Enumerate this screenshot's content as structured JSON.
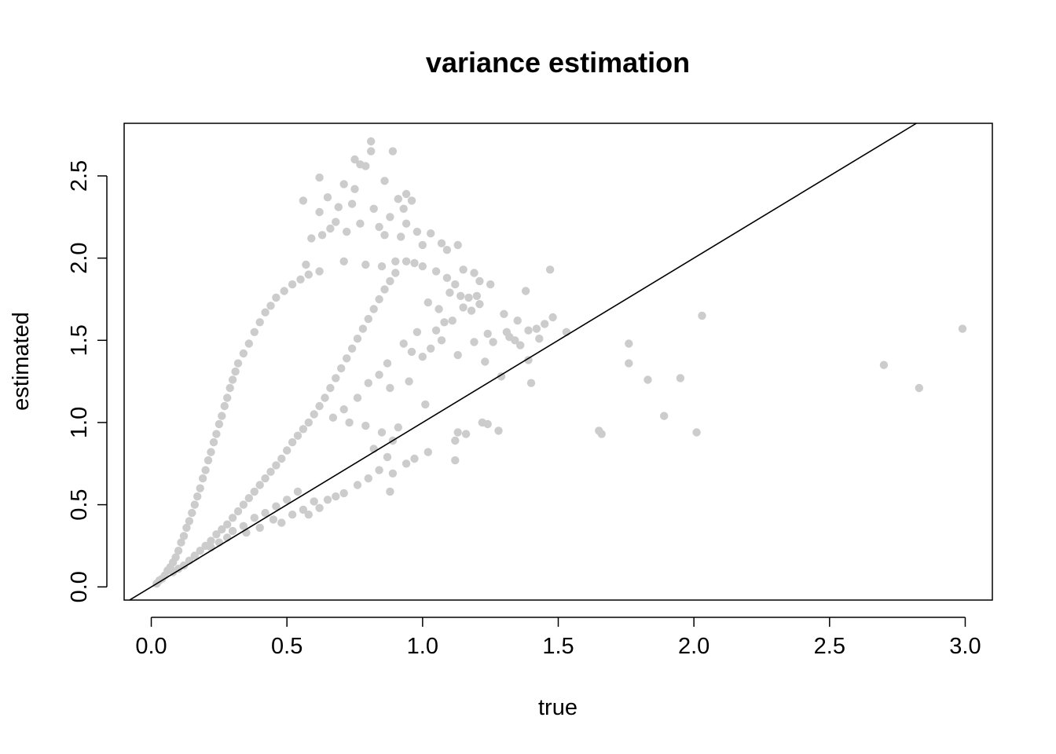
{
  "chart_data": {
    "type": "scatter",
    "title": "variance estimation",
    "xlabel": "true",
    "ylabel": "estimated",
    "xlim": [
      -0.1,
      3.1
    ],
    "ylim": [
      -0.08,
      2.82
    ],
    "xticks": [
      0.0,
      0.5,
      1.0,
      1.5,
      2.0,
      2.5,
      3.0
    ],
    "xtick_labels": [
      "0.0",
      "0.5",
      "1.0",
      "1.5",
      "2.0",
      "2.5",
      "3.0"
    ],
    "yticks": [
      0.0,
      0.5,
      1.0,
      1.5,
      2.0,
      2.5
    ],
    "ytick_labels": [
      "0.0",
      "0.5",
      "1.0",
      "1.5",
      "2.0",
      "2.5"
    ],
    "point_color": "#cccccc",
    "line_color": "#000000",
    "reference_line": {
      "intercept": 0,
      "slope": 1
    },
    "grid": false,
    "legend": "none",
    "series": [
      {
        "points": [
          [
            0.81,
            2.71
          ],
          [
            0.81,
            2.65
          ],
          [
            0.89,
            2.65
          ],
          [
            0.75,
            2.6
          ],
          [
            0.77,
            2.57
          ],
          [
            0.79,
            2.56
          ],
          [
            0.62,
            2.49
          ],
          [
            0.86,
            2.47
          ],
          [
            0.71,
            2.45
          ],
          [
            0.75,
            2.42
          ],
          [
            0.65,
            2.37
          ],
          [
            0.74,
            2.33
          ],
          [
            0.69,
            2.31
          ],
          [
            0.56,
            2.35
          ],
          [
            0.62,
            2.28
          ],
          [
            0.82,
            2.3
          ],
          [
            0.91,
            2.36
          ],
          [
            0.94,
            2.39
          ],
          [
            0.93,
            2.3
          ],
          [
            0.88,
            2.25
          ],
          [
            0.96,
            2.35
          ],
          [
            0.68,
            2.22
          ],
          [
            0.66,
            2.18
          ],
          [
            0.63,
            2.14
          ],
          [
            0.77,
            2.21
          ],
          [
            0.84,
            2.19
          ],
          [
            0.72,
            2.16
          ],
          [
            0.86,
            2.14
          ],
          [
            0.94,
            2.21
          ],
          [
            0.59,
            2.12
          ],
          [
            0.98,
            2.16
          ],
          [
            0.92,
            2.13
          ],
          [
            1.03,
            2.15
          ],
          [
            1.07,
            2.09
          ],
          [
            1.0,
            2.08
          ],
          [
            1.09,
            2.05
          ],
          [
            1.13,
            2.08
          ],
          [
            0.57,
            1.96
          ],
          [
            0.62,
            1.92
          ],
          [
            0.71,
            1.98
          ],
          [
            0.79,
            1.96
          ],
          [
            0.85,
            1.95
          ],
          [
            0.9,
            1.98
          ],
          [
            0.94,
            1.98
          ],
          [
            0.97,
            1.97
          ],
          [
            1.0,
            1.95
          ],
          [
            1.05,
            1.92
          ],
          [
            1.09,
            1.88
          ],
          [
            1.15,
            1.93
          ],
          [
            1.19,
            1.91
          ],
          [
            1.21,
            1.86
          ],
          [
            1.25,
            1.84
          ],
          [
            1.12,
            1.84
          ],
          [
            1.1,
            1.79
          ],
          [
            1.14,
            1.77
          ],
          [
            1.17,
            1.76
          ],
          [
            1.2,
            1.77
          ],
          [
            1.02,
            1.73
          ],
          [
            1.06,
            1.69
          ],
          [
            1.15,
            1.7
          ],
          [
            1.18,
            1.68
          ],
          [
            1.21,
            1.72
          ],
          [
            1.47,
            1.93
          ],
          [
            1.38,
            1.8
          ],
          [
            1.3,
            1.66
          ],
          [
            1.35,
            1.62
          ],
          [
            1.45,
            1.6
          ],
          [
            1.48,
            1.64
          ],
          [
            1.42,
            1.57
          ],
          [
            1.39,
            1.56
          ],
          [
            1.53,
            1.55
          ],
          [
            1.32,
            1.52
          ],
          [
            1.43,
            1.51
          ],
          [
            1.34,
            1.5
          ],
          [
            1.36,
            1.47
          ],
          [
            1.26,
            1.49
          ],
          [
            1.31,
            1.55
          ],
          [
            1.24,
            1.54
          ],
          [
            1.39,
            1.38
          ],
          [
            1.29,
            1.28
          ],
          [
            1.4,
            1.24
          ],
          [
            1.23,
            1.37
          ],
          [
            1.19,
            1.49
          ],
          [
            1.13,
            1.41
          ],
          [
            1.05,
            1.56
          ],
          [
            1.08,
            1.61
          ],
          [
            1.11,
            1.62
          ],
          [
            1.07,
            1.5
          ],
          [
            1.03,
            1.45
          ],
          [
            1.0,
            1.4
          ],
          [
            0.96,
            1.43
          ],
          [
            0.93,
            1.48
          ],
          [
            0.98,
            1.55
          ],
          [
            0.87,
            1.36
          ],
          [
            0.84,
            1.29
          ],
          [
            0.8,
            1.24
          ],
          [
            0.88,
            1.21
          ],
          [
            0.95,
            1.25
          ],
          [
            1.01,
            1.11
          ],
          [
            0.76,
            1.15
          ],
          [
            0.71,
            1.08
          ],
          [
            0.67,
            1.03
          ],
          [
            0.73,
            1.0
          ],
          [
            0.79,
            0.98
          ],
          [
            0.85,
            0.94
          ],
          [
            0.89,
            0.89
          ],
          [
            0.91,
            0.97
          ],
          [
            0.82,
            0.84
          ],
          [
            0.87,
            0.79
          ],
          [
            0.84,
            0.71
          ],
          [
            0.89,
            0.69
          ],
          [
            0.94,
            0.75
          ],
          [
            0.97,
            0.78
          ],
          [
            0.8,
            0.66
          ],
          [
            0.76,
            0.62
          ],
          [
            0.88,
            0.58
          ],
          [
            0.71,
            0.57
          ],
          [
            0.68,
            0.55
          ],
          [
            0.65,
            0.53
          ],
          [
            0.62,
            0.48
          ],
          [
            0.58,
            0.44
          ],
          [
            1.02,
            0.82
          ],
          [
            1.13,
            0.94
          ],
          [
            1.16,
            0.93
          ],
          [
            1.12,
            0.89
          ],
          [
            1.12,
            0.77
          ],
          [
            1.22,
            1.0
          ],
          [
            1.24,
            0.99
          ],
          [
            1.28,
            0.95
          ],
          [
            1.65,
            0.95
          ],
          [
            1.66,
            0.93
          ],
          [
            1.76,
            1.48
          ],
          [
            1.76,
            1.36
          ],
          [
            1.83,
            1.26
          ],
          [
            1.89,
            1.04
          ],
          [
            1.95,
            1.27
          ],
          [
            2.01,
            0.94
          ],
          [
            2.03,
            1.65
          ],
          [
            2.7,
            1.35
          ],
          [
            2.83,
            1.21
          ],
          [
            2.99,
            1.57
          ],
          [
            0.02,
            0.02
          ],
          [
            0.03,
            0.04
          ],
          [
            0.04,
            0.05
          ],
          [
            0.05,
            0.07
          ],
          [
            0.06,
            0.1
          ],
          [
            0.07,
            0.12
          ],
          [
            0.08,
            0.15
          ],
          [
            0.09,
            0.18
          ],
          [
            0.1,
            0.22
          ],
          [
            0.11,
            0.27
          ],
          [
            0.12,
            0.31
          ],
          [
            0.13,
            0.36
          ],
          [
            0.14,
            0.4
          ],
          [
            0.15,
            0.45
          ],
          [
            0.16,
            0.5
          ],
          [
            0.17,
            0.55
          ],
          [
            0.18,
            0.6
          ],
          [
            0.19,
            0.66
          ],
          [
            0.2,
            0.71
          ],
          [
            0.21,
            0.77
          ],
          [
            0.22,
            0.82
          ],
          [
            0.23,
            0.88
          ],
          [
            0.24,
            0.93
          ],
          [
            0.25,
            0.99
          ],
          [
            0.26,
            1.04
          ],
          [
            0.27,
            1.1
          ],
          [
            0.28,
            1.15
          ],
          [
            0.29,
            1.21
          ],
          [
            0.3,
            1.26
          ],
          [
            0.31,
            1.31
          ],
          [
            0.32,
            1.36
          ],
          [
            0.34,
            1.42
          ],
          [
            0.36,
            1.48
          ],
          [
            0.38,
            1.55
          ],
          [
            0.4,
            1.61
          ],
          [
            0.42,
            1.67
          ],
          [
            0.44,
            1.71
          ],
          [
            0.46,
            1.76
          ],
          [
            0.49,
            1.8
          ],
          [
            0.52,
            1.84
          ],
          [
            0.55,
            1.87
          ],
          [
            0.58,
            1.9
          ],
          [
            0.08,
            0.09
          ],
          [
            0.1,
            0.11
          ],
          [
            0.12,
            0.13
          ],
          [
            0.14,
            0.16
          ],
          [
            0.16,
            0.19
          ],
          [
            0.18,
            0.22
          ],
          [
            0.2,
            0.25
          ],
          [
            0.22,
            0.28
          ],
          [
            0.24,
            0.32
          ],
          [
            0.26,
            0.35
          ],
          [
            0.28,
            0.38
          ],
          [
            0.3,
            0.42
          ],
          [
            0.32,
            0.46
          ],
          [
            0.34,
            0.5
          ],
          [
            0.36,
            0.54
          ],
          [
            0.38,
            0.58
          ],
          [
            0.4,
            0.62
          ],
          [
            0.42,
            0.66
          ],
          [
            0.44,
            0.7
          ],
          [
            0.46,
            0.74
          ],
          [
            0.48,
            0.78
          ],
          [
            0.5,
            0.83
          ],
          [
            0.52,
            0.88
          ],
          [
            0.54,
            0.92
          ],
          [
            0.56,
            0.96
          ],
          [
            0.58,
            1.0
          ],
          [
            0.6,
            1.05
          ],
          [
            0.62,
            1.1
          ],
          [
            0.64,
            1.15
          ],
          [
            0.66,
            1.21
          ],
          [
            0.68,
            1.27
          ],
          [
            0.7,
            1.33
          ],
          [
            0.72,
            1.39
          ],
          [
            0.74,
            1.45
          ],
          [
            0.76,
            1.51
          ],
          [
            0.78,
            1.57
          ],
          [
            0.8,
            1.63
          ],
          [
            0.82,
            1.69
          ],
          [
            0.84,
            1.75
          ],
          [
            0.86,
            1.81
          ],
          [
            0.88,
            1.86
          ],
          [
            0.9,
            1.91
          ],
          [
            0.3,
            0.34
          ],
          [
            0.34,
            0.37
          ],
          [
            0.38,
            0.42
          ],
          [
            0.42,
            0.45
          ],
          [
            0.46,
            0.49
          ],
          [
            0.5,
            0.53
          ],
          [
            0.54,
            0.58
          ],
          [
            0.48,
            0.39
          ],
          [
            0.52,
            0.44
          ],
          [
            0.56,
            0.47
          ],
          [
            0.6,
            0.52
          ],
          [
            0.35,
            0.33
          ],
          [
            0.4,
            0.36
          ],
          [
            0.45,
            0.41
          ],
          [
            0.28,
            0.3
          ],
          [
            0.25,
            0.27
          ],
          [
            0.22,
            0.24
          ]
        ]
      }
    ]
  }
}
